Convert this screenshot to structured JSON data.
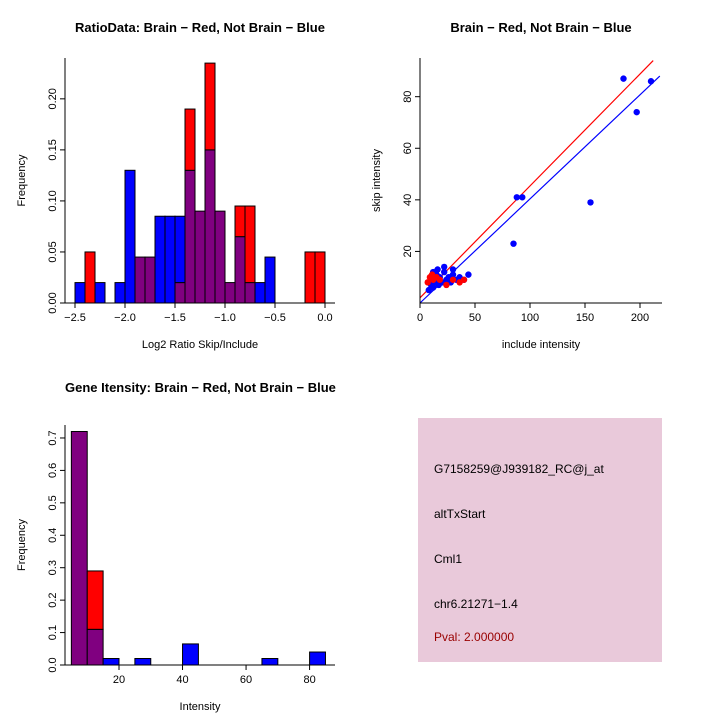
{
  "page": {
    "background": "#FFFFFF"
  },
  "colors": {
    "red": "#FF0000",
    "blue": "#0000FF",
    "overlap": "#800080",
    "axis": "#000000",
    "infobox_bg": "#E9C9DA",
    "pval_text": "#990000",
    "text": "#000000"
  },
  "chart_data": [
    {
      "type": "histogram-overlay",
      "title": "RatioData: Brain − Red, Not Brain − Blue",
      "xlabel": "Log2 Ratio Skip/Include",
      "ylabel": "Frequency",
      "xlim": [
        -2.6,
        0.1
      ],
      "ylim": [
        0,
        0.24
      ],
      "xticks": [
        -2.5,
        -2.0,
        -1.5,
        -1.0,
        -0.5,
        0.0
      ],
      "xtick_labels": [
        "−2.5",
        "−2.0",
        "−1.5",
        "−1.0",
        "−0.5",
        "0.0"
      ],
      "yticks": [
        0.0,
        0.05,
        0.1,
        0.15,
        0.2
      ],
      "ytick_labels": [
        "0.00",
        "0.05",
        "0.10",
        "0.15",
        "0.20"
      ],
      "bin_width": 0.1,
      "legend": [
        {
          "name": "Brain",
          "color": "red"
        },
        {
          "name": "Not Brain",
          "color": "blue"
        }
      ],
      "bins": [
        {
          "x": -2.5,
          "red": 0,
          "blue": 0.02
        },
        {
          "x": -2.4,
          "red": 0.05,
          "blue": 0
        },
        {
          "x": -2.3,
          "red": 0,
          "blue": 0.02
        },
        {
          "x": -2.1,
          "red": 0,
          "blue": 0.02
        },
        {
          "x": -2.0,
          "red": 0,
          "blue": 0.13
        },
        {
          "x": -1.9,
          "red": 0.045,
          "blue": 0.045
        },
        {
          "x": -1.8,
          "red": 0.045,
          "blue": 0.045
        },
        {
          "x": -1.7,
          "red": 0,
          "blue": 0.085
        },
        {
          "x": -1.6,
          "red": 0,
          "blue": 0.085
        },
        {
          "x": -1.5,
          "red": 0.02,
          "blue": 0.085
        },
        {
          "x": -1.4,
          "red": 0.19,
          "blue": 0.13
        },
        {
          "x": -1.3,
          "red": 0.09,
          "blue": 0.09
        },
        {
          "x": -1.2,
          "red": 0.235,
          "blue": 0.15
        },
        {
          "x": -1.1,
          "red": 0.09,
          "blue": 0.09
        },
        {
          "x": -1.0,
          "red": 0.02,
          "blue": 0.02
        },
        {
          "x": -0.9,
          "red": 0.095,
          "blue": 0.065
        },
        {
          "x": -0.8,
          "red": 0.095,
          "blue": 0.02
        },
        {
          "x": -0.7,
          "red": 0,
          "blue": 0.02
        },
        {
          "x": -0.6,
          "red": 0,
          "blue": 0.045
        },
        {
          "x": -0.2,
          "red": 0.05,
          "blue": 0
        },
        {
          "x": -0.1,
          "red": 0.05,
          "blue": 0
        }
      ]
    },
    {
      "type": "scatter",
      "title": "Brain − Red, Not Brain − Blue",
      "xlabel": "include intensity",
      "ylabel": "skip intensity",
      "xlim": [
        0,
        220
      ],
      "ylim": [
        0,
        95
      ],
      "xticks": [
        0,
        50,
        100,
        150,
        200
      ],
      "xtick_labels": [
        "0",
        "50",
        "100",
        "150",
        "200"
      ],
      "yticks": [
        20,
        40,
        60,
        80
      ],
      "ytick_labels": [
        "20",
        "40",
        "60",
        "80"
      ],
      "series": [
        {
          "name": "Not Brain",
          "color": "blue",
          "points": [
            [
              8,
              5
            ],
            [
              10,
              7
            ],
            [
              11,
              9
            ],
            [
              12,
              6
            ],
            [
              14,
              8
            ],
            [
              15,
              11
            ],
            [
              17,
              7
            ],
            [
              18,
              10
            ],
            [
              20,
              8
            ],
            [
              22,
              12
            ],
            [
              24,
              9
            ],
            [
              26,
              10
            ],
            [
              28,
              8
            ],
            [
              30,
              11
            ],
            [
              33,
              9
            ],
            [
              36,
              10
            ],
            [
              40,
              9
            ],
            [
              44,
              11
            ],
            [
              12,
              12
            ],
            [
              16,
              13
            ],
            [
              22,
              14
            ],
            [
              30,
              13
            ],
            [
              85,
              23
            ],
            [
              88,
              41
            ],
            [
              93,
              41
            ],
            [
              155,
              39
            ],
            [
              185,
              87
            ],
            [
              197,
              74
            ],
            [
              210,
              86
            ]
          ]
        },
        {
          "name": "Brain",
          "color": "red",
          "points": [
            [
              7,
              8
            ],
            [
              9,
              10
            ],
            [
              12,
              9
            ],
            [
              15,
              10
            ],
            [
              18,
              9
            ],
            [
              24,
              7
            ],
            [
              30,
              9
            ],
            [
              36,
              8
            ],
            [
              40,
              9
            ],
            [
              11,
              11
            ]
          ]
        }
      ],
      "lines": [
        {
          "color": "red",
          "x": [
            0,
            212
          ],
          "y": [
            2,
            94
          ]
        },
        {
          "color": "blue",
          "x": [
            0,
            218
          ],
          "y": [
            0,
            88
          ]
        }
      ]
    },
    {
      "type": "histogram-overlay",
      "title": "Gene Itensity: Brain − Red, Not Brain − Blue",
      "xlabel": "Intensity",
      "ylabel": "Frequency",
      "xlim": [
        3,
        88
      ],
      "ylim": [
        0,
        0.74
      ],
      "xticks": [
        20,
        40,
        60,
        80
      ],
      "xtick_labels": [
        "20",
        "40",
        "60",
        "80"
      ],
      "yticks": [
        0.0,
        0.1,
        0.2,
        0.3,
        0.4,
        0.5,
        0.6,
        0.7
      ],
      "ytick_labels": [
        "0.0",
        "0.1",
        "0.2",
        "0.3",
        "0.4",
        "0.5",
        "0.6",
        "0.7"
      ],
      "bin_width": 5,
      "legend": [
        {
          "name": "Brain",
          "color": "red"
        },
        {
          "name": "Not Brain",
          "color": "blue"
        }
      ],
      "bins": [
        {
          "x": 5,
          "red": 0.72,
          "blue": 0.72
        },
        {
          "x": 10,
          "red": 0.29,
          "blue": 0.11
        },
        {
          "x": 15,
          "red": 0,
          "blue": 0.02
        },
        {
          "x": 25,
          "red": 0,
          "blue": 0.02
        },
        {
          "x": 40,
          "red": 0,
          "blue": 0.065
        },
        {
          "x": 65,
          "red": 0,
          "blue": 0.02
        },
        {
          "x": 80,
          "red": 0,
          "blue": 0.04
        }
      ]
    }
  ],
  "info_panel": {
    "probe_id": "G7158259@J939182_RC@j_at",
    "alt_label": "altTxStart",
    "gene": "Cml1",
    "location": "chr6.21271−1.4",
    "pval": "Pval: 2.000000"
  }
}
